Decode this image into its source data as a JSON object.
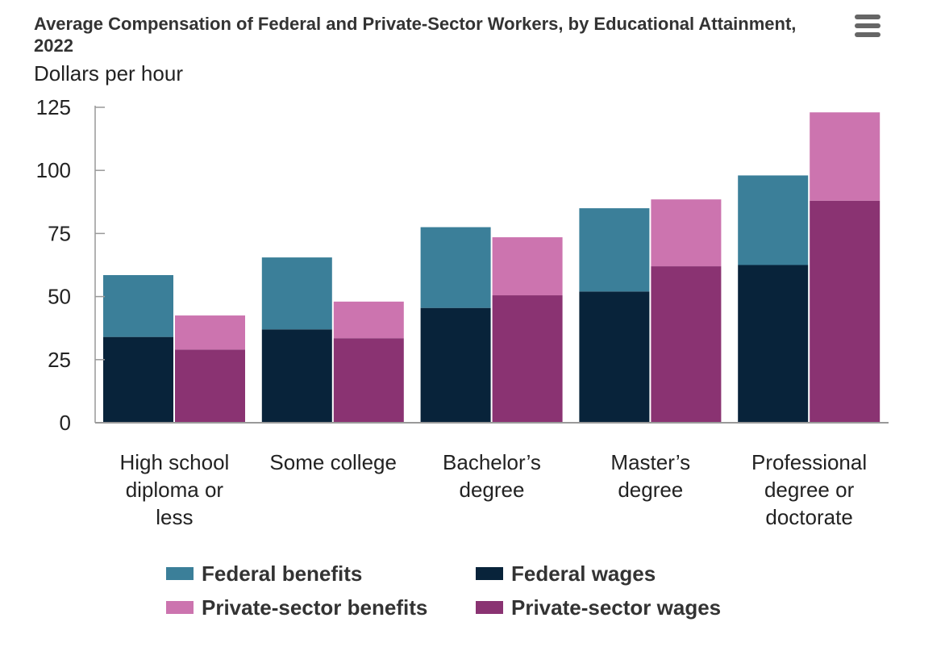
{
  "header": {
    "title": "Average Compensation of Federal and Private-Sector Workers, by Educational Attainment, 2022",
    "unit_label": "Dollars per hour",
    "menu_icon": "hamburger-menu-icon"
  },
  "colors": {
    "federal_benefits": "#3b7f99",
    "federal_wages": "#08233a",
    "private_benefits": "#cc74af",
    "private_wages": "#8a3372",
    "axis": "#999999"
  },
  "chart_data": {
    "type": "bar",
    "stacked": true,
    "title": "Average Compensation of Federal and Private-Sector Workers, by Educational Attainment, 2022",
    "ylabel": "Dollars per hour",
    "xlabel": "",
    "ylim": [
      0,
      125
    ],
    "yticks": [
      0,
      25,
      50,
      75,
      100,
      125
    ],
    "grid": false,
    "legend_position": "bottom",
    "categories": [
      "High school diploma or less",
      "Some college",
      "Bachelor’s degree",
      "Master’s degree",
      "Professional degree or doctorate"
    ],
    "category_label_lines": [
      [
        "High school",
        "diploma or",
        "less"
      ],
      [
        "Some college"
      ],
      [
        "Bachelor’s",
        "degree"
      ],
      [
        "Master’s",
        "degree"
      ],
      [
        "Professional",
        "degree or",
        "doctorate"
      ]
    ],
    "series": [
      {
        "name": "Federal wages",
        "stack": "Federal",
        "values": [
          34,
          37,
          45.5,
          52,
          62.5
        ]
      },
      {
        "name": "Federal benefits",
        "stack": "Federal",
        "values": [
          24.5,
          28.5,
          32,
          33,
          35.5
        ]
      },
      {
        "name": "Private-sector wages",
        "stack": "Private",
        "values": [
          29,
          33.5,
          50.5,
          62,
          88
        ]
      },
      {
        "name": "Private-sector benefits",
        "stack": "Private",
        "values": [
          13.5,
          14.5,
          23,
          26.5,
          35
        ]
      }
    ]
  },
  "legend": {
    "items": [
      {
        "label": "Federal benefits",
        "color_key": "federal_benefits"
      },
      {
        "label": "Federal wages",
        "color_key": "federal_wages"
      },
      {
        "label": "Private-sector benefits",
        "color_key": "private_benefits"
      },
      {
        "label": "Private-sector wages",
        "color_key": "private_wages"
      }
    ]
  }
}
